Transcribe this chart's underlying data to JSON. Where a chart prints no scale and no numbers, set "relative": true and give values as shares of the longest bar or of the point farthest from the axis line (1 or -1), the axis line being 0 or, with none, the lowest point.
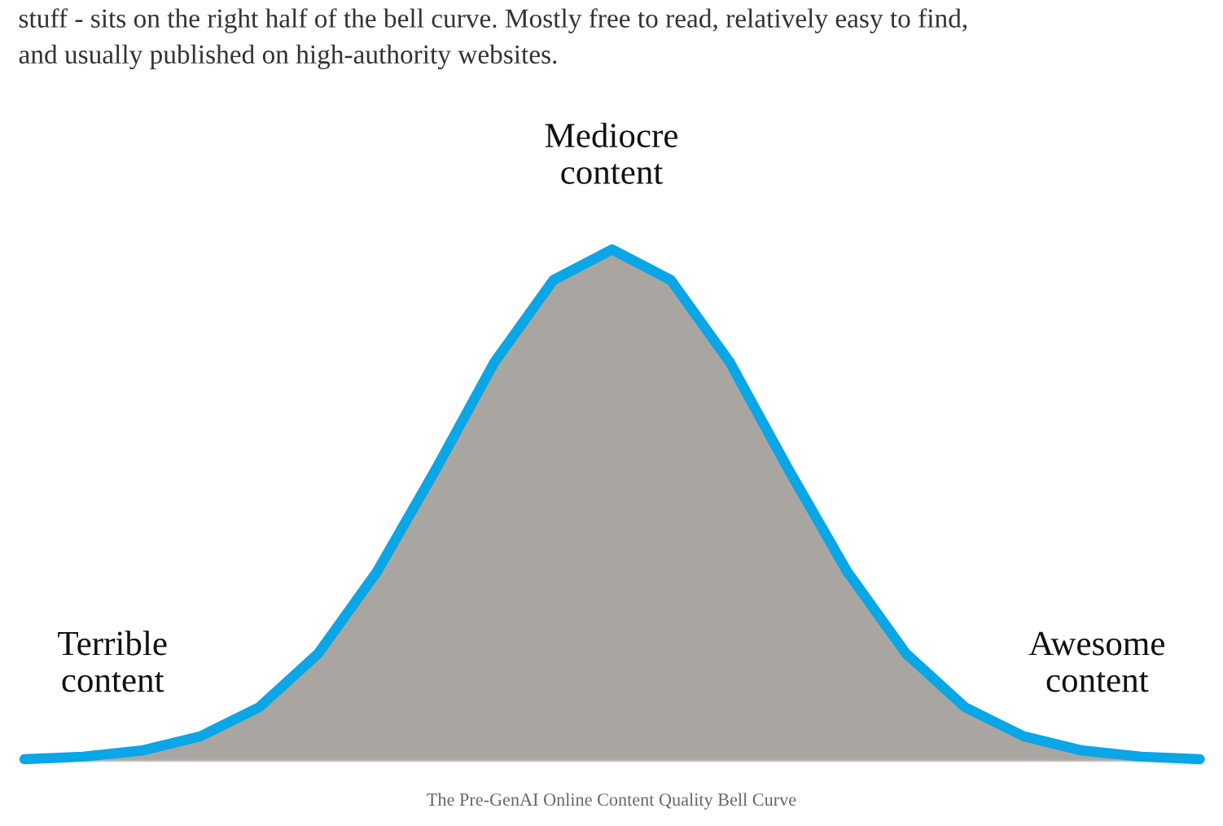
{
  "chart_data": {
    "type": "area",
    "relative": true,
    "categories": [
      null,
      null,
      null,
      null,
      null,
      null,
      null,
      null,
      null,
      null,
      null,
      null,
      null,
      null,
      null,
      null,
      null,
      null,
      null,
      null,
      null
    ],
    "series": [
      {
        "color": "#0aa6e6",
        "values": [
          0.003,
          0.008,
          0.02,
          0.048,
          0.105,
          0.21,
          0.37,
          0.57,
          0.78,
          0.94,
          1,
          0.94,
          0.78,
          0.57,
          0.37,
          0.21,
          0.105,
          0.048,
          0.02,
          0.008,
          0.003
        ]
      }
    ],
    "annotations": [
      "stuff - sits on the right half of the bell curve. Mostly free to read, relatively easy to find,\nand usually published on high-authority websites.",
      "Mediocre\ncontent",
      "Terrible\ncontent",
      "Awesome\ncontent",
      "The Pre-GenAI Online Content Quality Bell Curve"
    ],
    "grid": false,
    "legend": false
  }
}
